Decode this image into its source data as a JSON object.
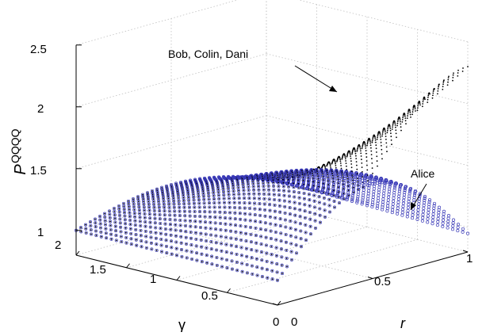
{
  "chart_data": {
    "type": "scatter3d",
    "xlabel": "γ",
    "ylabel": "r",
    "zlabel": "P",
    "zlabel_superscript": "QQQQ",
    "xlim": [
      0,
      2
    ],
    "ylim": [
      0,
      1
    ],
    "zlim": [
      0.8,
      2.5
    ],
    "xticks": [
      "0",
      "0.5",
      "1",
      "1.5",
      "2"
    ],
    "yticks": [
      "0",
      "0.5",
      "1"
    ],
    "zticks": [
      "1",
      "1.5",
      "2",
      "2.5"
    ],
    "grid": true,
    "box": true,
    "annotations": [
      {
        "text": "Bob, Colin, Dani",
        "target": "series 0"
      },
      {
        "text": "Alice",
        "target": "series 1"
      }
    ],
    "series": [
      {
        "marker": "dot",
        "color": "#000000",
        "grid_size": 41,
        "corner_values": {
          "gamma0_r0": 1.0,
          "gamma2_r0": 1.0,
          "gamma0_r1": 2.3,
          "gamma2_r1": 1.0
        }
      },
      {
        "marker": "circle",
        "color": "#3a3ab8",
        "grid_size": 41,
        "corner_values": {
          "gamma0_r0": 1.0,
          "gamma2_r0": 1.0,
          "gamma0_r1": 0.95,
          "gamma2_r1": 1.0
        },
        "ridge_max": 1.6
      }
    ]
  }
}
